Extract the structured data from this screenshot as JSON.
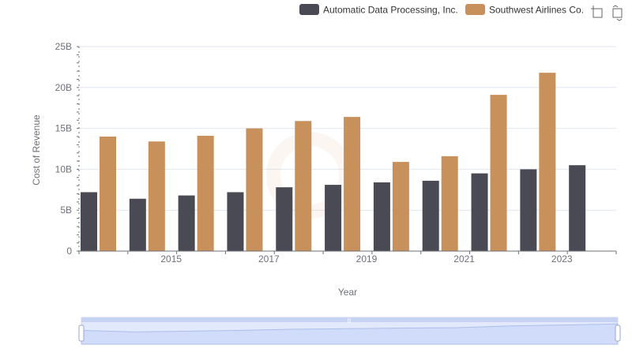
{
  "chart_data": {
    "type": "bar",
    "title": "",
    "xlabel": "Year",
    "ylabel": "Cost of Revenue",
    "x": [
      2014,
      2015,
      2016,
      2017,
      2018,
      2019,
      2020,
      2021,
      2022,
      2023,
      2024
    ],
    "x_tick_labels": [
      "2015",
      "2017",
      "2019",
      "2021",
      "2023"
    ],
    "y_ticks": [
      0,
      5,
      10,
      15,
      20,
      25
    ],
    "y_tick_labels": [
      "0",
      "5B",
      "10B",
      "15B",
      "20B",
      "25B"
    ],
    "ylim": [
      0,
      25
    ],
    "y_unit": "billions",
    "legend_position": "top-right",
    "series": [
      {
        "name": "Automatic Data Processing, Inc.",
        "color": "#4a4a55",
        "values": [
          7.2,
          6.4,
          6.8,
          7.2,
          7.8,
          8.1,
          8.4,
          8.6,
          9.5,
          10.0,
          10.5
        ]
      },
      {
        "name": "Southwest Airlines Co.",
        "color": "#c8905a",
        "values": [
          14.0,
          13.4,
          14.1,
          15.0,
          15.9,
          16.4,
          10.9,
          11.6,
          19.1,
          21.8,
          null
        ]
      }
    ]
  },
  "colors": {
    "grid": "#e0e6f1",
    "axis": "#6e7079",
    "slider_fill": "#dfe7fb",
    "slider_border": "#b7c5ea"
  },
  "toolbox": {
    "icons": [
      "zoom-icon",
      "restore-icon"
    ]
  },
  "slider": {
    "range": [
      0,
      100
    ],
    "handle_glyph": "|||"
  }
}
